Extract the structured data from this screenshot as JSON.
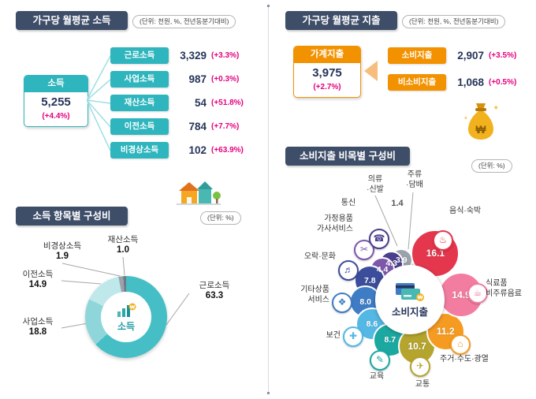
{
  "income_section": {
    "title": "가구당 월평균 소득",
    "unit_note": "(단위: 천원, %, 전년동분기대비)",
    "total": {
      "label": "소득",
      "value": "5,255",
      "change": "(+4.4%)"
    },
    "items": [
      {
        "label": "근로소득",
        "value": "3,329",
        "change": "(+3.3%)"
      },
      {
        "label": "사업소득",
        "value": "987",
        "change": "(+0.3%)"
      },
      {
        "label": "재산소득",
        "value": "54",
        "change": "(+51.8%)"
      },
      {
        "label": "이전소득",
        "value": "784",
        "change": "(+7.7%)"
      },
      {
        "label": "비경상소득",
        "value": "102",
        "change": "(+63.9%)"
      }
    ]
  },
  "expenditure_section": {
    "title": "가구당 월평균 지출",
    "unit_note": "(단위: 천원, %, 전년동분기대비)",
    "total": {
      "label": "가계지출",
      "value": "3,975",
      "change": "(+2.7%)"
    },
    "items": [
      {
        "label": "소비지출",
        "value": "2,907",
        "change": "(+3.5%)"
      },
      {
        "label": "비소비지출",
        "value": "1,068",
        "change": "(+0.5%)"
      }
    ]
  },
  "income_composition": {
    "title": "소득 항목별 구성비",
    "unit_note": "(단위: %)",
    "center_label": "소득",
    "callouts": [
      {
        "label": "근로소득",
        "value": "63.3"
      },
      {
        "label": "사업소득",
        "value": "18.8"
      },
      {
        "label": "이전소득",
        "value": "14.9"
      },
      {
        "label": "비경상소득",
        "value": "1.9"
      },
      {
        "label": "재산소득",
        "value": "1.0"
      }
    ]
  },
  "expenditure_composition": {
    "title": "소비지출 비목별 구성비",
    "unit_note": "(단위: %)",
    "center_label": "소비지출",
    "callouts": [
      {
        "lines": [
          "음식·숙박"
        ]
      },
      {
        "lines": [
          "식료품",
          "비주류음료"
        ]
      },
      {
        "lines": [
          "주거·수도·광열"
        ]
      },
      {
        "lines": [
          "교통"
        ]
      },
      {
        "lines": [
          "교육"
        ]
      },
      {
        "lines": [
          "보건"
        ]
      },
      {
        "lines": [
          "기타상품",
          "서비스"
        ]
      },
      {
        "lines": [
          "오락·문화"
        ]
      },
      {
        "lines": [
          "가정용품",
          "가사서비스"
        ]
      },
      {
        "lines": [
          "통신"
        ]
      },
      {
        "lines": [
          "의류",
          "·신발"
        ]
      },
      {
        "lines": [
          "주류",
          "·담배"
        ],
        "value": "1.4"
      }
    ],
    "icons": [
      {
        "name": "food-icon",
        "glyph": "♨"
      },
      {
        "name": "grocery-icon",
        "glyph": "☕"
      },
      {
        "name": "housing-icon",
        "glyph": "⌂"
      },
      {
        "name": "transport-icon",
        "glyph": "✈"
      },
      {
        "name": "education-icon",
        "glyph": "✎"
      },
      {
        "name": "health-icon",
        "glyph": "✚"
      },
      {
        "name": "goods-icon",
        "glyph": "❖"
      },
      {
        "name": "culture-icon",
        "glyph": "♬"
      },
      {
        "name": "household-icon",
        "glyph": "✂"
      },
      {
        "name": "telecom-icon",
        "glyph": "☎"
      }
    ]
  },
  "colors": {
    "header_bg": "#3e4d68",
    "accent_teal": "#2fb5bd",
    "accent_orange": "#f39200",
    "value_navy": "#26355a",
    "change_magenta": "#e5007e"
  },
  "chart_data": [
    {
      "type": "pie",
      "donut": true,
      "title": "소득 항목별 구성비",
      "unit": "%",
      "center_label": "소득",
      "start": "top",
      "direction": "clockwise",
      "labels": [
        "근로소득",
        "사업소득",
        "이전소득",
        "비경상소득",
        "재산소득"
      ],
      "values": [
        63.3,
        18.8,
        14.9,
        1.9,
        1.0
      ],
      "colors": [
        "#45bec6",
        "#8fd6da",
        "#bfe8ea",
        "#9aa3ab",
        "#707a84"
      ]
    },
    {
      "type": "pie",
      "donut": true,
      "title": "소비지출 비목별 구성비",
      "unit": "%",
      "center_label": "소비지출",
      "start": "top",
      "direction": "clockwise",
      "labels": [
        "음식·숙박",
        "식료품·비주류음료",
        "주거·수도·광열",
        "교통",
        "교육",
        "보건",
        "기타상품·서비스",
        "오락·문화",
        "가정용품·가사서비스",
        "통신",
        "의류·신발",
        "주류·담배"
      ],
      "values": [
        16.1,
        14.9,
        11.2,
        10.7,
        8.7,
        8.6,
        8.0,
        7.8,
        4.4,
        4.3,
        3.9,
        1.4
      ],
      "colors": [
        "#e4374e",
        "#f27da0",
        "#f59b22",
        "#b5a52f",
        "#1ba8a0",
        "#54b8e4",
        "#3e7dc6",
        "#3b4d9b",
        "#7e57ad",
        "#4a3f8e",
        "#9aa2aa",
        "#c6ccd2"
      ]
    }
  ]
}
